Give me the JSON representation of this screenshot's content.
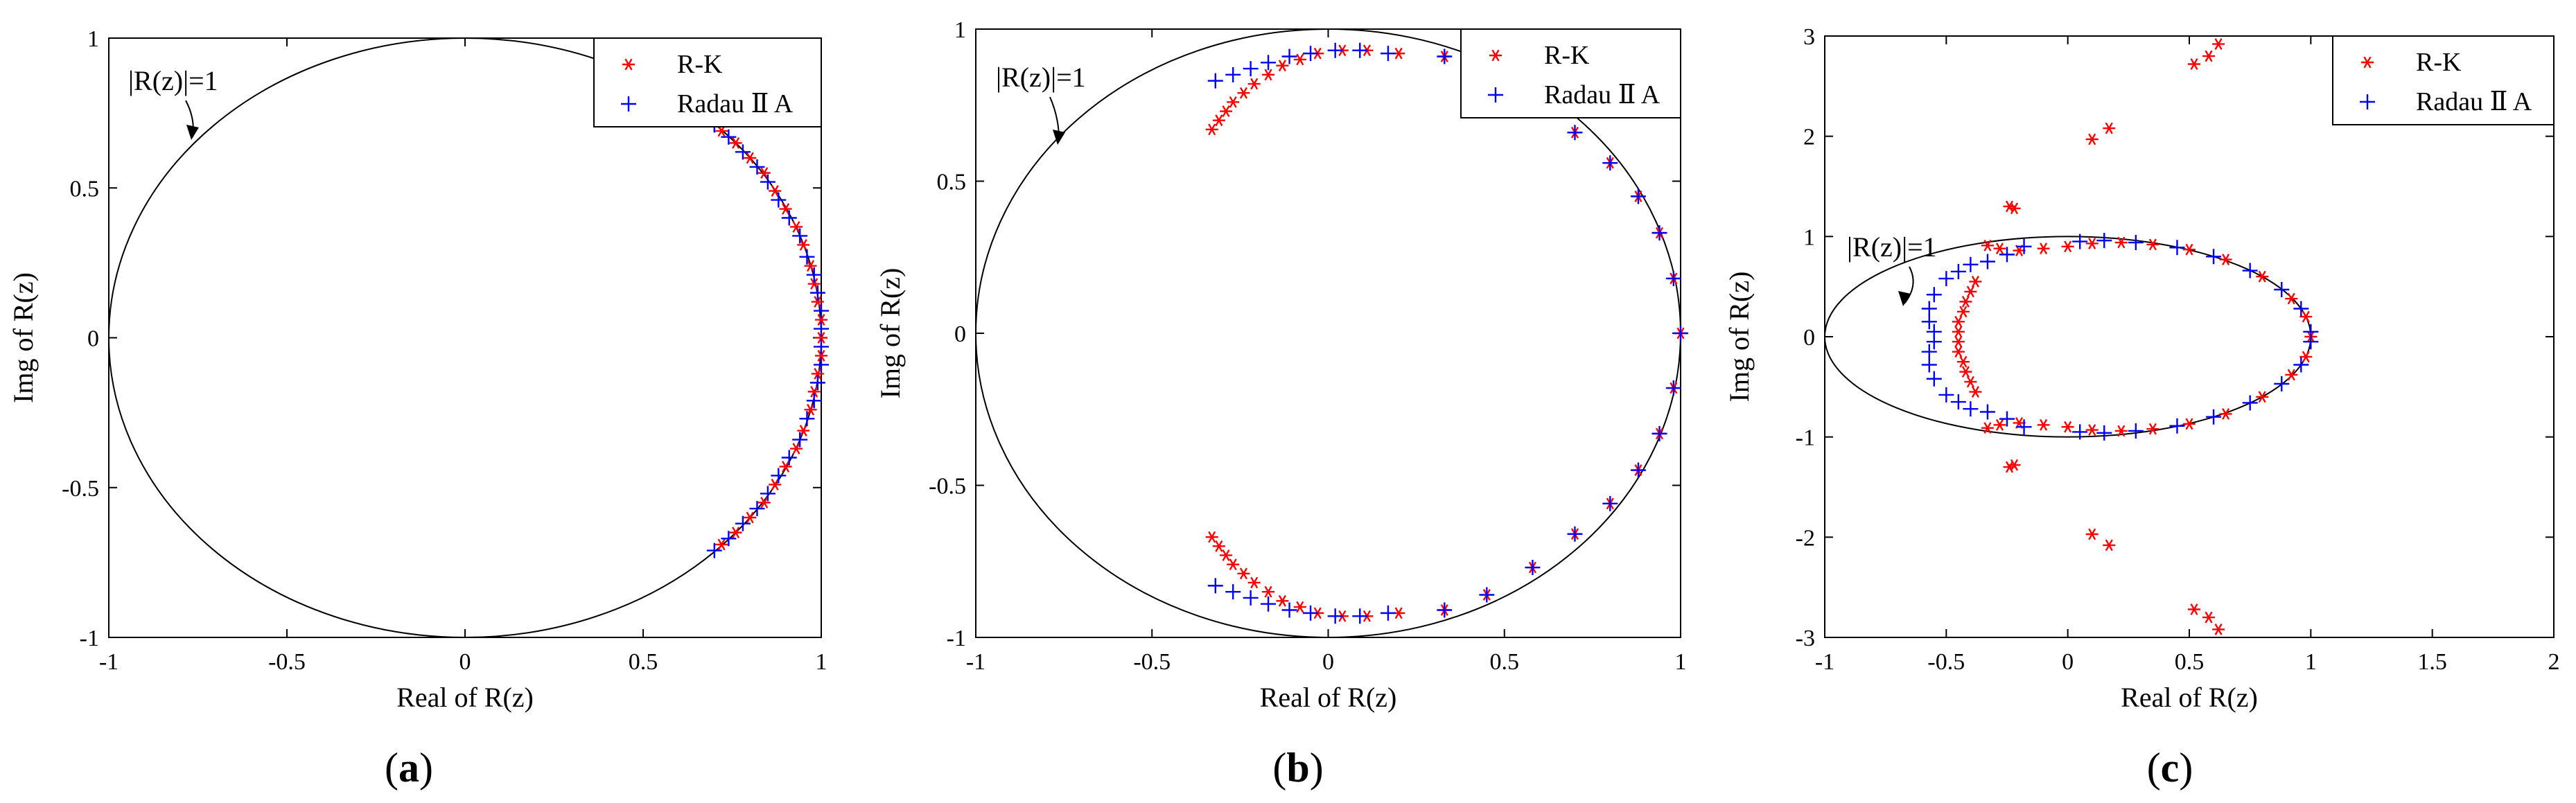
{
  "figure": {
    "annotation": "|R(z)|=1",
    "legend": {
      "rk": "R-K",
      "radau": "Radau Ⅱ A"
    },
    "colors": {
      "rk": "#ff0000",
      "radau": "#0000ff",
      "circle": "#000000"
    }
  },
  "chart_data": [
    {
      "type": "scatter",
      "panel": "a",
      "panel_label": "(a)",
      "xlabel": "Real of R(z)",
      "ylabel": "Img of R(z)",
      "xlim": [
        -1,
        1
      ],
      "ylim": [
        -1,
        1
      ],
      "xticks": [
        "-1",
        "-0.5",
        "0",
        "0.5",
        "1"
      ],
      "yticks": [
        "-1",
        "-0.5",
        "0",
        "0.5",
        "1"
      ],
      "xtick_values": [
        -1,
        -0.5,
        0,
        0.5,
        1
      ],
      "ytick_values": [
        -1,
        -0.5,
        0,
        0.5,
        1
      ],
      "reference": {
        "shape": "ellipse",
        "center": [
          0,
          0
        ],
        "rx": 1,
        "ry": 1,
        "label": "|R(z)|=1"
      },
      "legend_position": "top-right",
      "series": [
        {
          "name": "R-K",
          "marker": "*",
          "color": "#ff0000",
          "points": [
            [
              0.72,
              0.69
            ],
            [
              0.76,
              0.65
            ],
            [
              0.8,
              0.6
            ],
            [
              0.84,
              0.55
            ],
            [
              0.87,
              0.49
            ],
            [
              0.9,
              0.43
            ],
            [
              0.93,
              0.37
            ],
            [
              0.95,
              0.31
            ],
            [
              0.97,
              0.24
            ],
            [
              0.98,
              0.18
            ],
            [
              0.99,
              0.12
            ],
            [
              1.0,
              0.06
            ],
            [
              1.0,
              0.0
            ],
            [
              1.0,
              -0.06
            ],
            [
              0.99,
              -0.12
            ],
            [
              0.98,
              -0.18
            ],
            [
              0.97,
              -0.24
            ],
            [
              0.95,
              -0.31
            ],
            [
              0.93,
              -0.37
            ],
            [
              0.9,
              -0.43
            ],
            [
              0.87,
              -0.49
            ],
            [
              0.84,
              -0.55
            ],
            [
              0.8,
              -0.6
            ],
            [
              0.76,
              -0.65
            ],
            [
              0.72,
              -0.69
            ]
          ]
        },
        {
          "name": "Radau Ⅱ A",
          "marker": "+",
          "color": "#0000ff",
          "points": [
            [
              0.7,
              0.71
            ],
            [
              0.74,
              0.67
            ],
            [
              0.78,
              0.62
            ],
            [
              0.82,
              0.57
            ],
            [
              0.85,
              0.52
            ],
            [
              0.88,
              0.46
            ],
            [
              0.91,
              0.4
            ],
            [
              0.94,
              0.34
            ],
            [
              0.96,
              0.27
            ],
            [
              0.98,
              0.21
            ],
            [
              0.99,
              0.15
            ],
            [
              1.0,
              0.09
            ],
            [
              1.0,
              0.03
            ],
            [
              1.0,
              -0.03
            ],
            [
              1.0,
              -0.09
            ],
            [
              0.99,
              -0.15
            ],
            [
              0.98,
              -0.21
            ],
            [
              0.96,
              -0.27
            ],
            [
              0.94,
              -0.34
            ],
            [
              0.91,
              -0.4
            ],
            [
              0.88,
              -0.46
            ],
            [
              0.85,
              -0.52
            ],
            [
              0.82,
              -0.57
            ],
            [
              0.78,
              -0.62
            ],
            [
              0.74,
              -0.67
            ],
            [
              0.7,
              -0.71
            ]
          ]
        }
      ]
    },
    {
      "type": "scatter",
      "panel": "b",
      "panel_label": "(b)",
      "xlabel": "Real of R(z)",
      "ylabel": "Img of R(z)",
      "xlim": [
        -1,
        1
      ],
      "ylim": [
        -1,
        1
      ],
      "xticks": [
        "-1",
        "-0.5",
        "0",
        "0.5",
        "1"
      ],
      "yticks": [
        "-1",
        "-0.5",
        "0",
        "0.5",
        "1"
      ],
      "xtick_values": [
        -1,
        -0.5,
        0,
        0.5,
        1
      ],
      "ytick_values": [
        -1,
        -0.5,
        0,
        0.5,
        1
      ],
      "reference": {
        "shape": "ellipse",
        "center": [
          0,
          0
        ],
        "rx": 1,
        "ry": 1,
        "label": "|R(z)|=1"
      },
      "legend_position": "top-right",
      "series": [
        {
          "name": "R-K",
          "marker": "*",
          "color": "#ff0000",
          "points": [
            [
              -0.33,
              0.67
            ],
            [
              -0.31,
              0.7
            ],
            [
              -0.29,
              0.73
            ],
            [
              -0.27,
              0.76
            ],
            [
              -0.24,
              0.79
            ],
            [
              -0.21,
              0.82
            ],
            [
              -0.17,
              0.85
            ],
            [
              -0.13,
              0.88
            ],
            [
              -0.08,
              0.9
            ],
            [
              -0.03,
              0.92
            ],
            [
              0.04,
              0.93
            ],
            [
              0.11,
              0.93
            ],
            [
              0.2,
              0.92
            ],
            [
              0.33,
              0.91
            ],
            [
              0.45,
              0.86
            ],
            [
              0.58,
              0.77
            ],
            [
              0.7,
              0.66
            ],
            [
              0.8,
              0.56
            ],
            [
              0.88,
              0.45
            ],
            [
              0.94,
              0.33
            ],
            [
              0.98,
              0.18
            ],
            [
              1.0,
              0.0
            ],
            [
              0.98,
              -0.18
            ],
            [
              0.94,
              -0.33
            ],
            [
              0.88,
              -0.45
            ],
            [
              0.8,
              -0.56
            ],
            [
              0.7,
              -0.66
            ],
            [
              0.58,
              -0.77
            ],
            [
              0.45,
              -0.86
            ],
            [
              0.33,
              -0.91
            ],
            [
              0.2,
              -0.92
            ],
            [
              0.11,
              -0.93
            ],
            [
              0.04,
              -0.93
            ],
            [
              -0.03,
              -0.92
            ],
            [
              -0.08,
              -0.9
            ],
            [
              -0.13,
              -0.88
            ],
            [
              -0.17,
              -0.85
            ],
            [
              -0.21,
              -0.82
            ],
            [
              -0.24,
              -0.79
            ],
            [
              -0.27,
              -0.76
            ],
            [
              -0.29,
              -0.73
            ],
            [
              -0.31,
              -0.7
            ],
            [
              -0.33,
              -0.67
            ]
          ]
        },
        {
          "name": "Radau Ⅱ A",
          "marker": "+",
          "color": "#0000ff",
          "points": [
            [
              -0.32,
              0.83
            ],
            [
              -0.27,
              0.85
            ],
            [
              -0.22,
              0.87
            ],
            [
              -0.17,
              0.89
            ],
            [
              -0.11,
              0.91
            ],
            [
              -0.05,
              0.92
            ],
            [
              0.02,
              0.93
            ],
            [
              0.09,
              0.93
            ],
            [
              0.17,
              0.92
            ],
            [
              0.33,
              0.91
            ],
            [
              0.45,
              0.86
            ],
            [
              0.58,
              0.77
            ],
            [
              0.7,
              0.66
            ],
            [
              0.8,
              0.56
            ],
            [
              0.88,
              0.45
            ],
            [
              0.94,
              0.33
            ],
            [
              0.98,
              0.18
            ],
            [
              1.0,
              0.0
            ],
            [
              0.98,
              -0.18
            ],
            [
              0.94,
              -0.33
            ],
            [
              0.88,
              -0.45
            ],
            [
              0.8,
              -0.56
            ],
            [
              0.7,
              -0.66
            ],
            [
              0.58,
              -0.77
            ],
            [
              0.45,
              -0.86
            ],
            [
              0.33,
              -0.91
            ],
            [
              0.17,
              -0.92
            ],
            [
              0.09,
              -0.93
            ],
            [
              0.02,
              -0.93
            ],
            [
              -0.05,
              -0.92
            ],
            [
              -0.11,
              -0.91
            ],
            [
              -0.17,
              -0.89
            ],
            [
              -0.22,
              -0.87
            ],
            [
              -0.27,
              -0.85
            ],
            [
              -0.32,
              -0.83
            ]
          ]
        }
      ]
    },
    {
      "type": "scatter",
      "panel": "c",
      "panel_label": "(c)",
      "xlabel": "Real of R(z)",
      "ylabel": "Img of R(z)",
      "xlim": [
        -1,
        2
      ],
      "ylim": [
        -3,
        3
      ],
      "xticks": [
        "-1",
        "-0.5",
        "0",
        "0.5",
        "1",
        "1.5",
        "2"
      ],
      "yticks": [
        "-3",
        "-2",
        "-1",
        "0",
        "1",
        "2",
        "3"
      ],
      "xtick_values": [
        -1,
        -0.5,
        0,
        0.5,
        1,
        1.5,
        2
      ],
      "ytick_values": [
        -3,
        -2,
        -1,
        0,
        1,
        2,
        3
      ],
      "reference": {
        "shape": "ellipse",
        "center": [
          0,
          0
        ],
        "rx": 1,
        "ry": 1,
        "label": "|R(z)|=1"
      },
      "legend_position": "top-right",
      "series": [
        {
          "name": "R-K",
          "marker": "*",
          "color": "#ff0000",
          "points": [
            [
              0.52,
              2.72
            ],
            [
              0.58,
              2.8
            ],
            [
              0.62,
              2.92
            ],
            [
              0.1,
              1.97
            ],
            [
              0.17,
              2.08
            ],
            [
              -0.22,
              1.28
            ],
            [
              -0.24,
              1.3
            ],
            [
              -0.33,
              0.91
            ],
            [
              -0.28,
              0.88
            ],
            [
              -0.2,
              0.86
            ],
            [
              -0.1,
              0.88
            ],
            [
              0.0,
              0.9
            ],
            [
              0.1,
              0.93
            ],
            [
              0.22,
              0.94
            ],
            [
              0.35,
              0.92
            ],
            [
              0.5,
              0.87
            ],
            [
              0.65,
              0.77
            ],
            [
              0.8,
              0.6
            ],
            [
              0.92,
              0.38
            ],
            [
              0.98,
              0.2
            ],
            [
              1.0,
              0.0
            ],
            [
              0.98,
              -0.2
            ],
            [
              0.92,
              -0.38
            ],
            [
              0.8,
              -0.6
            ],
            [
              0.65,
              -0.77
            ],
            [
              0.5,
              -0.87
            ],
            [
              0.35,
              -0.92
            ],
            [
              0.22,
              -0.94
            ],
            [
              0.1,
              -0.93
            ],
            [
              0.0,
              -0.9
            ],
            [
              -0.1,
              -0.88
            ],
            [
              -0.2,
              -0.86
            ],
            [
              -0.28,
              -0.88
            ],
            [
              -0.33,
              -0.91
            ],
            [
              -0.38,
              0.55
            ],
            [
              -0.4,
              0.45
            ],
            [
              -0.42,
              0.35
            ],
            [
              -0.43,
              0.25
            ],
            [
              -0.45,
              0.15
            ],
            [
              -0.45,
              0.05
            ],
            [
              -0.45,
              -0.05
            ],
            [
              -0.45,
              -0.15
            ],
            [
              -0.43,
              -0.25
            ],
            [
              -0.42,
              -0.35
            ],
            [
              -0.4,
              -0.45
            ],
            [
              -0.38,
              -0.55
            ],
            [
              -0.22,
              -1.28
            ],
            [
              -0.24,
              -1.3
            ],
            [
              0.1,
              -1.97
            ],
            [
              0.17,
              -2.08
            ],
            [
              0.52,
              -2.72
            ],
            [
              0.58,
              -2.8
            ],
            [
              0.62,
              -2.92
            ]
          ]
        },
        {
          "name": "Radau Ⅱ A",
          "marker": "+",
          "color": "#0000ff",
          "points": [
            [
              -0.18,
              0.9
            ],
            [
              -0.25,
              0.82
            ],
            [
              -0.33,
              0.75
            ],
            [
              -0.4,
              0.72
            ],
            [
              -0.45,
              0.65
            ],
            [
              -0.5,
              0.58
            ],
            [
              -0.55,
              0.42
            ],
            [
              -0.57,
              0.28
            ],
            [
              -0.57,
              0.15
            ],
            [
              -0.55,
              0.05
            ],
            [
              -0.55,
              -0.05
            ],
            [
              -0.57,
              -0.15
            ],
            [
              -0.57,
              -0.28
            ],
            [
              -0.55,
              -0.42
            ],
            [
              -0.5,
              -0.58
            ],
            [
              -0.45,
              -0.65
            ],
            [
              -0.4,
              -0.72
            ],
            [
              -0.33,
              -0.75
            ],
            [
              -0.25,
              -0.82
            ],
            [
              -0.18,
              -0.9
            ],
            [
              0.05,
              0.95
            ],
            [
              0.15,
              0.96
            ],
            [
              0.28,
              0.94
            ],
            [
              0.45,
              0.89
            ],
            [
              0.6,
              0.8
            ],
            [
              0.75,
              0.66
            ],
            [
              0.88,
              0.47
            ],
            [
              0.96,
              0.28
            ],
            [
              1.0,
              0.05
            ],
            [
              1.0,
              -0.05
            ],
            [
              0.96,
              -0.28
            ],
            [
              0.88,
              -0.47
            ],
            [
              0.75,
              -0.66
            ],
            [
              0.6,
              -0.8
            ],
            [
              0.45,
              -0.89
            ],
            [
              0.28,
              -0.94
            ],
            [
              0.15,
              -0.96
            ],
            [
              0.05,
              -0.95
            ]
          ]
        }
      ]
    }
  ]
}
